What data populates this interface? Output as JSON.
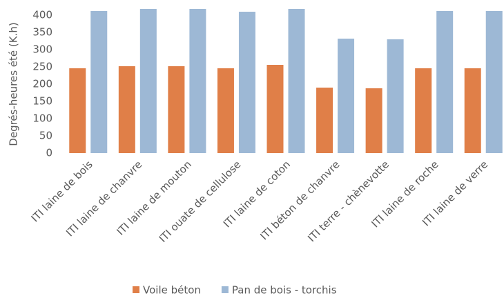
{
  "chart_data": {
    "type": "bar",
    "y_label": "Degrés-heures été (K.h)",
    "categories": [
      "ITI laine de bois",
      "ITI laine de chanvre",
      "ITI laine de mouton",
      "ITI ouate de cellulose",
      "ITI laine de coton",
      "ITI béton de chanvre",
      "ITI terre - chènevotte",
      "ITI laine de roche",
      "ITI laine de verre"
    ],
    "series": [
      {
        "name": "Voile béton",
        "color": "#e07f48",
        "values": [
          246,
          252,
          252,
          246,
          256,
          190,
          188,
          246,
          246
        ]
      },
      {
        "name": "Pan de bois - torchis",
        "color": "#9db8d5",
        "values": [
          412,
          418,
          418,
          410,
          418,
          332,
          330,
          412,
          412
        ]
      }
    ],
    "ylim": [
      0,
      420
    ],
    "yticks": [
      0,
      50,
      100,
      150,
      200,
      250,
      300,
      350,
      400
    ],
    "legend": "bottom"
  }
}
